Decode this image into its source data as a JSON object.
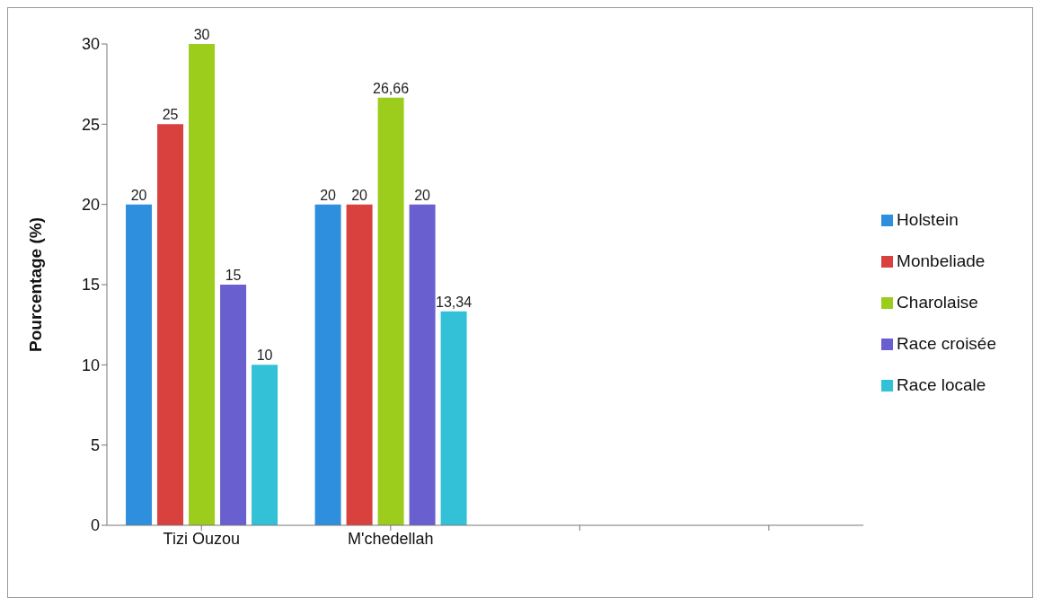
{
  "chart_data": {
    "type": "bar",
    "ylabel": "Pourcentage (%)",
    "categories": [
      "Tizi Ouzou",
      "M'chedellah",
      null,
      null
    ],
    "series": [
      {
        "name": "Holstein",
        "color": "#2e8fde",
        "values": [
          20,
          20,
          null,
          null
        ],
        "value_labels": [
          "20",
          "20",
          null,
          null
        ]
      },
      {
        "name": "Monbeliade",
        "color": "#d9413f",
        "values": [
          25,
          20,
          null,
          null
        ],
        "value_labels": [
          "25",
          "20",
          null,
          null
        ]
      },
      {
        "name": "Charolaise",
        "color": "#9ccc1c",
        "values": [
          30,
          26.66,
          null,
          null
        ],
        "value_labels": [
          "30",
          "26,66",
          null,
          null
        ]
      },
      {
        "name": "Race croisée",
        "color": "#6a5fcf",
        "values": [
          15,
          20,
          null,
          null
        ],
        "value_labels": [
          "15",
          "20",
          null,
          null
        ]
      },
      {
        "name": "Race locale",
        "color": "#33c1d8",
        "values": [
          10,
          13.34,
          null,
          null
        ],
        "value_labels": [
          "10",
          "13,34",
          null,
          null
        ]
      }
    ],
    "ylim": [
      0,
      30
    ],
    "yticks": [
      0,
      5,
      10,
      15,
      20,
      25,
      30
    ],
    "grid": false,
    "legend": "right"
  }
}
